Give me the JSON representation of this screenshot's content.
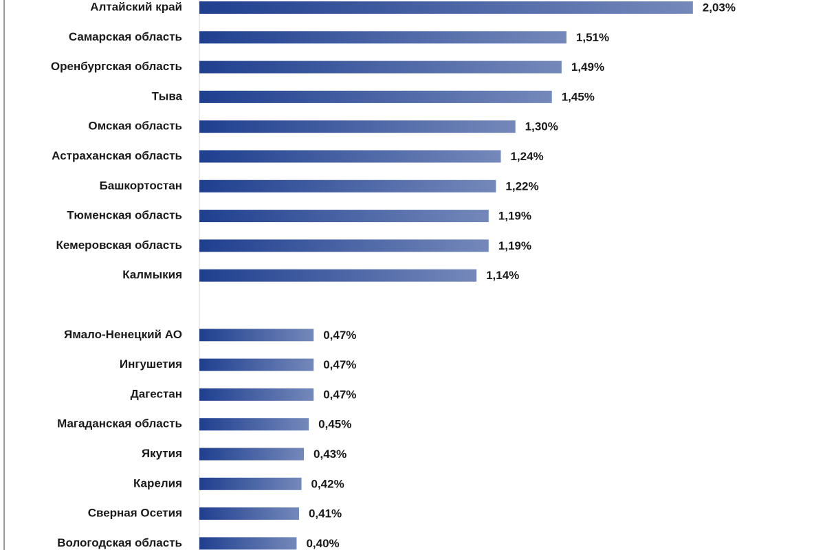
{
  "chart_data": {
    "type": "bar",
    "orientation": "horizontal",
    "categories": [
      "Алтайский край",
      "Самарская область",
      "Оренбургская область",
      "Тыва",
      "Омская область",
      "Астраханская область",
      "Башкортостан",
      "Тюменская область",
      "Кемеровская область",
      "Калмыкия",
      null,
      "Ямало-Ненецкий АО",
      "Ингушетия",
      "Дагестан",
      "Магаданская область",
      "Якутия",
      "Карелия",
      "Сверная Осетия",
      "Вологодская область"
    ],
    "values": [
      2.03,
      1.51,
      1.49,
      1.45,
      1.3,
      1.24,
      1.22,
      1.19,
      1.19,
      1.14,
      null,
      0.47,
      0.47,
      0.47,
      0.45,
      0.43,
      0.42,
      0.41,
      0.4
    ],
    "value_labels": [
      "2,03%",
      "1,51%",
      "1,49%",
      "1,45%",
      "1,30%",
      "1,24%",
      "1,22%",
      "1,19%",
      "1,19%",
      "1,14%",
      null,
      "0,47%",
      "0,47%",
      "0,47%",
      "0,45%",
      "0,43%",
      "0,42%",
      "0,41%",
      "0,40%"
    ],
    "color": "#1f3f8f",
    "xlim": [
      0,
      2.5
    ]
  }
}
